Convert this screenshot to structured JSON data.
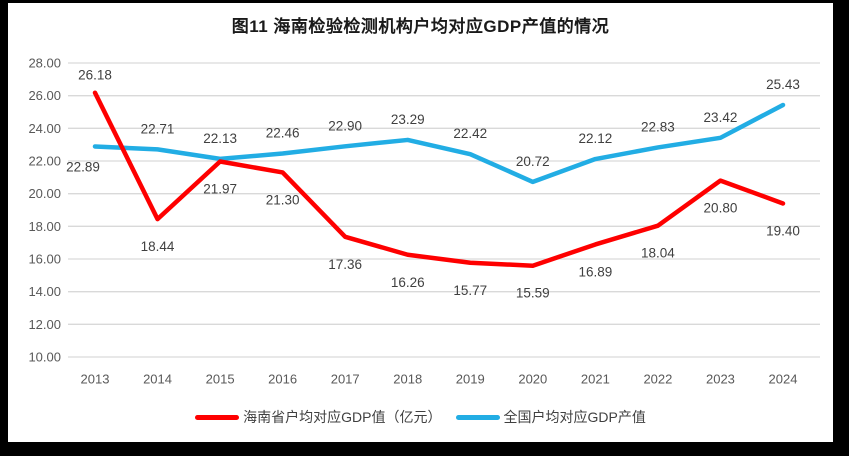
{
  "title": "图11 海南检验检测机构户均对应GDP产值的情况",
  "chart_data": {
    "type": "line",
    "title": "图11 海南检验检测机构户均对应GDP产值的情况",
    "categories": [
      "2013",
      "2014",
      "2015",
      "2016",
      "2017",
      "2018",
      "2019",
      "2020",
      "2021",
      "2022",
      "2023",
      "2024"
    ],
    "series": [
      {
        "name": "海南省户均对应GDP值（亿元）",
        "color": "#FE0000",
        "values": [
          26.18,
          18.44,
          21.97,
          21.3,
          17.36,
          16.26,
          15.77,
          15.59,
          16.89,
          18.04,
          20.8,
          19.4
        ]
      },
      {
        "name": "全国户均对应GDP产值",
        "color": "#22ADE4",
        "values": [
          22.89,
          22.71,
          22.13,
          22.46,
          22.9,
          23.29,
          22.42,
          20.72,
          22.12,
          22.83,
          23.42,
          25.43
        ]
      }
    ],
    "ylim": [
      10,
      28
    ],
    "ytick_values": [
      28,
      26,
      24,
      22,
      20,
      18,
      16,
      14,
      12,
      10
    ],
    "ytick_labels": [
      "28.00",
      "26.00",
      "24.00",
      "22.00",
      "20.00",
      "18.00",
      "16.00",
      "14.00",
      "12.00",
      "10.00"
    ],
    "xlabel": "",
    "ylabel": "",
    "grid": true,
    "data_labels": true,
    "legend_position": "bottom"
  },
  "colors": {
    "page_border": "#000000",
    "chart_background": "#ffffff",
    "gridline": "#d9d9d9",
    "axis_text": "#595959",
    "data_label_text": "#404040"
  }
}
